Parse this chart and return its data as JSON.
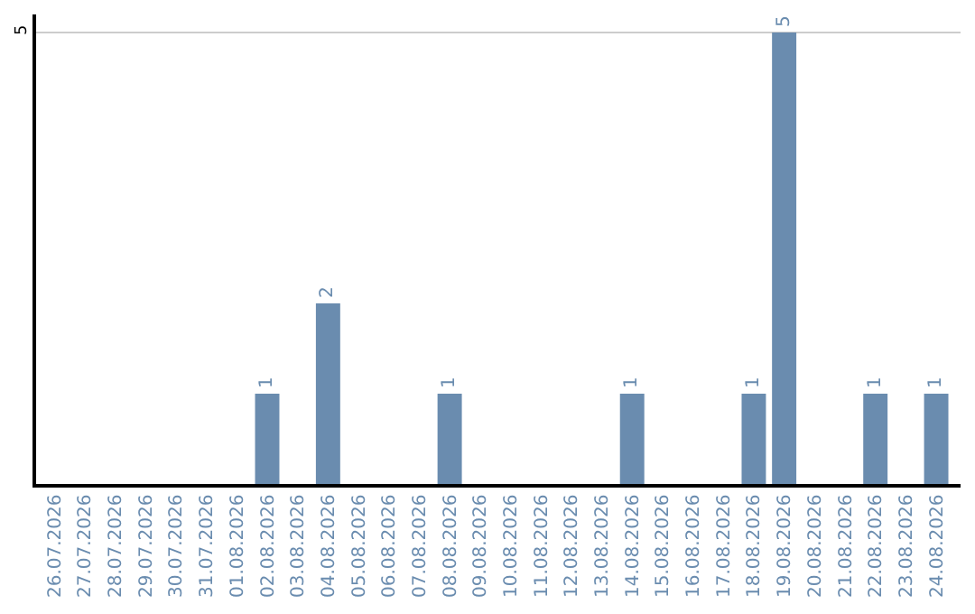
{
  "chart_data": {
    "type": "bar",
    "categories": [
      "26.07.2026",
      "27.07.2026",
      "28.07.2026",
      "29.07.2026",
      "30.07.2026",
      "31.07.2026",
      "01.08.2026",
      "02.08.2026",
      "03.08.2026",
      "04.08.2026",
      "05.08.2026",
      "06.08.2026",
      "07.08.2026",
      "08.08.2026",
      "09.08.2026",
      "10.08.2026",
      "11.08.2026",
      "12.08.2026",
      "13.08.2026",
      "14.08.2026",
      "15.08.2026",
      "16.08.2026",
      "17.08.2026",
      "18.08.2026",
      "19.08.2026",
      "20.08.2026",
      "21.08.2026",
      "22.08.2026",
      "23.08.2026",
      "24.08.2026"
    ],
    "values": [
      0,
      0,
      0,
      0,
      0,
      0,
      0,
      1,
      0,
      2,
      0,
      0,
      0,
      1,
      0,
      0,
      0,
      0,
      0,
      1,
      0,
      0,
      0,
      1,
      5,
      0,
      0,
      1,
      0,
      1
    ],
    "value_labels": [
      null,
      null,
      null,
      null,
      null,
      null,
      null,
      "1",
      null,
      "2",
      null,
      null,
      null,
      "1",
      null,
      null,
      null,
      null,
      null,
      "1",
      null,
      null,
      null,
      "1",
      "5",
      null,
      null,
      "1",
      null,
      "1"
    ],
    "color": "#6a8caf",
    "ylim": [
      0,
      5.2
    ],
    "yticks": [
      5
    ],
    "grid": "y"
  }
}
